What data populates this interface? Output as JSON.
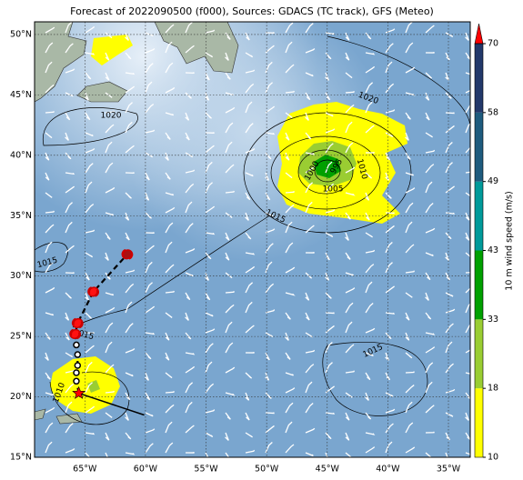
{
  "title": "Forecast of 2022090500 (f000), Sources: GDACS (TC track), GFS (Meteo)",
  "map": {
    "xlim": [
      -69.15,
      -33.2
    ],
    "ylim": [
      15,
      51.05
    ],
    "xticks": [
      {
        "value": -65,
        "label": "65°W"
      },
      {
        "value": -60,
        "label": "60°W"
      },
      {
        "value": -55,
        "label": "55°W"
      },
      {
        "value": -50,
        "label": "50°W"
      },
      {
        "value": -45,
        "label": "45°W"
      },
      {
        "value": -40,
        "label": "40°W"
      },
      {
        "value": -35,
        "label": "35°W"
      }
    ],
    "yticks": [
      {
        "value": 15,
        "label": "15°N"
      },
      {
        "value": 20,
        "label": "20°N"
      },
      {
        "value": 25,
        "label": "25°N"
      },
      {
        "value": 30,
        "label": "30°N"
      },
      {
        "value": 35,
        "label": "35°N"
      },
      {
        "value": 40,
        "label": "40°N"
      },
      {
        "value": 45,
        "label": "45°N"
      },
      {
        "value": 50,
        "label": "50°N"
      }
    ],
    "grid": true,
    "contour_labels": [
      1020,
      1020,
      1015,
      1015,
      1015,
      1015,
      1010,
      1010,
      1005,
      1000,
      995
    ]
  },
  "track": {
    "lon": [
      -65.5,
      -65.7,
      -65.7,
      -65.6,
      -65.6,
      -65.7,
      -65.8,
      -65.6,
      -64.3,
      -61.5
    ],
    "lat": [
      20.3,
      21.3,
      22.0,
      22.6,
      23.5,
      24.3,
      25.2,
      26.1,
      28.7,
      31.8
    ]
  },
  "past_track": {
    "lon": [
      -65.5,
      -60.1
    ],
    "lat": [
      20.3,
      18.5
    ]
  },
  "colorbar": {
    "label": "10 m wind speed (m/s)",
    "ticks": [
      10,
      18,
      33,
      43,
      49,
      58,
      70
    ],
    "colors": [
      "#ffff00",
      "#9acd32",
      "#00a000",
      "#009a9a",
      "#1e5b7e",
      "#22386a"
    ],
    "extend_color": "#ff0000"
  }
}
